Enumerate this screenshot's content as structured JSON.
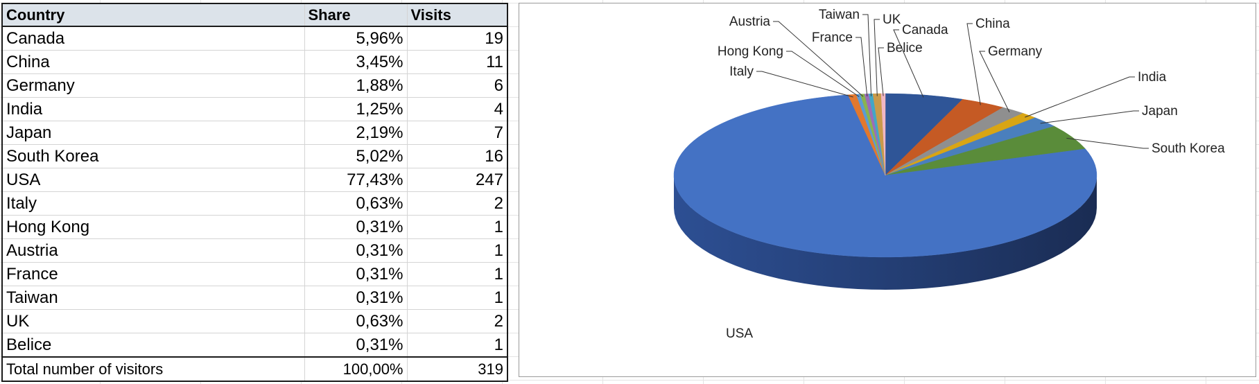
{
  "table": {
    "headers": [
      "Country",
      "Share",
      "Visits"
    ],
    "rows": [
      {
        "country": "Canada",
        "share": "5,96%",
        "visits": "19"
      },
      {
        "country": "China",
        "share": "3,45%",
        "visits": "11"
      },
      {
        "country": "Germany",
        "share": "1,88%",
        "visits": "6"
      },
      {
        "country": "India",
        "share": "1,25%",
        "visits": "4"
      },
      {
        "country": "Japan",
        "share": "2,19%",
        "visits": "7"
      },
      {
        "country": "South Korea",
        "share": "5,02%",
        "visits": "16"
      },
      {
        "country": "USA",
        "share": "77,43%",
        "visits": "247"
      },
      {
        "country": "Italy",
        "share": "0,63%",
        "visits": "2"
      },
      {
        "country": "Hong Kong",
        "share": "0,31%",
        "visits": "1"
      },
      {
        "country": "Austria",
        "share": "0,31%",
        "visits": "1"
      },
      {
        "country": "France",
        "share": "0,31%",
        "visits": "1"
      },
      {
        "country": "Taiwan",
        "share": "0,31%",
        "visits": "1"
      },
      {
        "country": "UK",
        "share": "0,63%",
        "visits": "2"
      },
      {
        "country": "Belice",
        "share": "0,31%",
        "visits": "1"
      }
    ],
    "total": {
      "label": "Total number of visitors",
      "share": "100,00%",
      "visits": "319"
    }
  },
  "chart_data": {
    "type": "pie",
    "style": "3d",
    "categories": [
      "Canada",
      "China",
      "Germany",
      "India",
      "Japan",
      "South Korea",
      "USA",
      "Italy",
      "Hong Kong",
      "Austria",
      "France",
      "Taiwan",
      "UK",
      "Belice"
    ],
    "values": [
      19,
      11,
      6,
      4,
      7,
      16,
      247,
      2,
      1,
      1,
      1,
      1,
      2,
      1
    ],
    "colors": [
      "#2f5597",
      "#c55a24",
      "#8f8f8f",
      "#d9a514",
      "#4a7fbd",
      "#5a8c3a",
      "#4472c4",
      "#e2782e",
      "#5b9bd5",
      "#8ab34f",
      "#9b6db8",
      "#43a6c6",
      "#c99a4a",
      "#f0b7c4"
    ],
    "labels": [
      "Canada",
      "China",
      "Germany",
      "India",
      "Japan",
      "South Korea",
      "USA",
      "Italy",
      "Hong Kong",
      "Austria",
      "France",
      "Taiwan",
      "UK",
      "Belice"
    ]
  }
}
